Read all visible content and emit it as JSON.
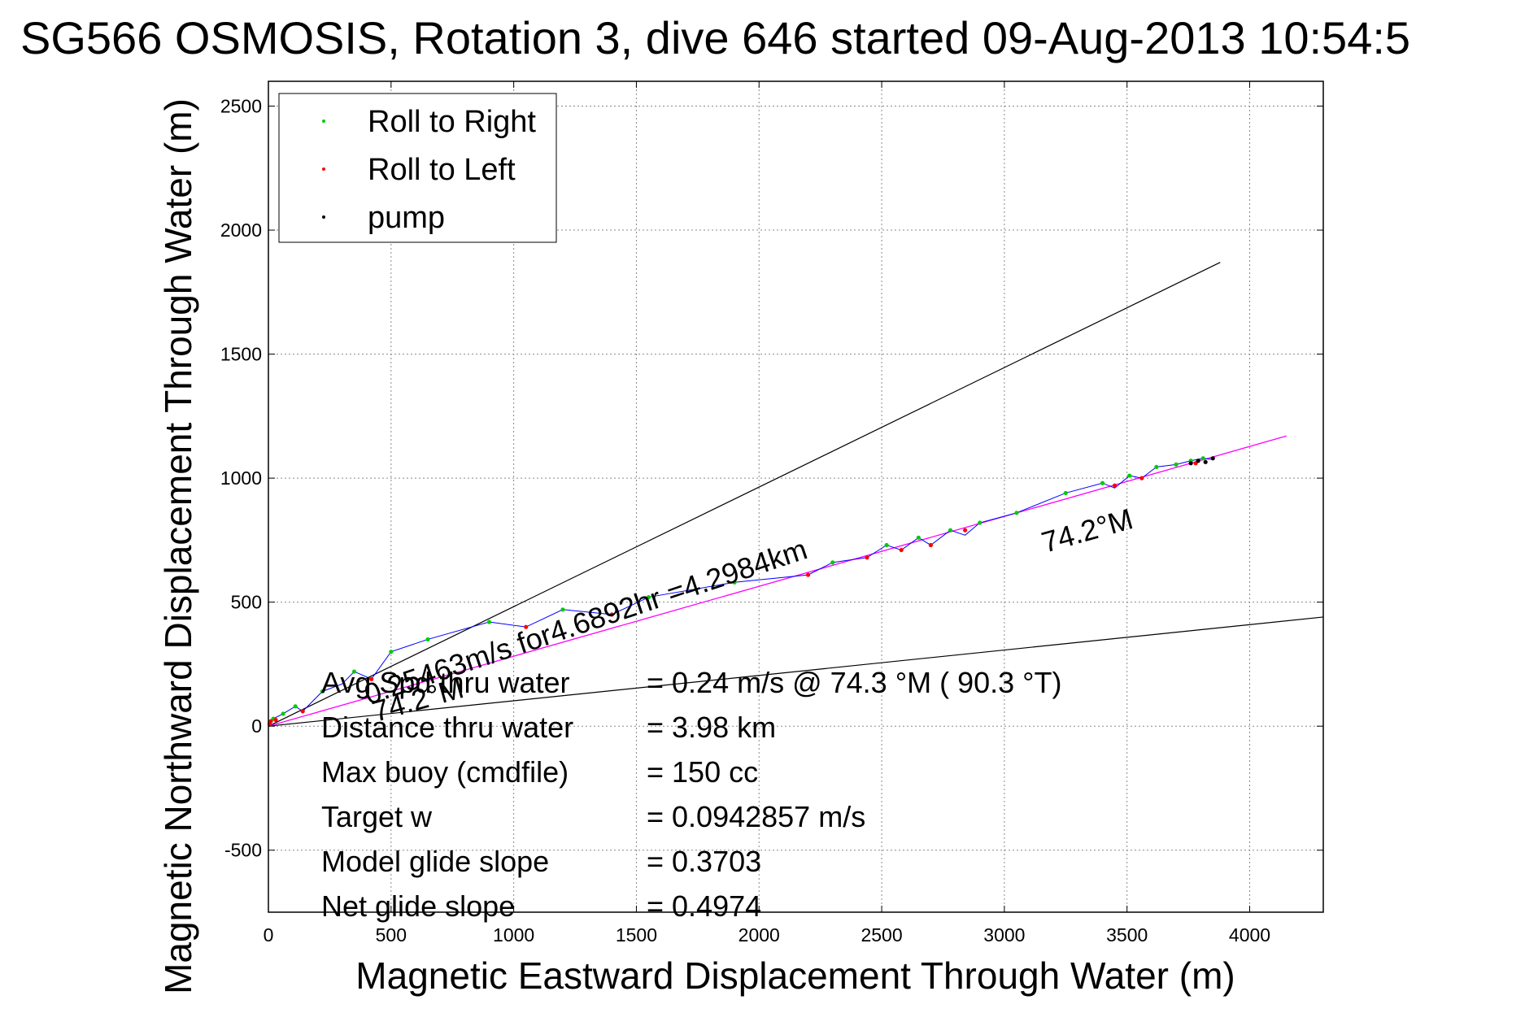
{
  "chart_data": {
    "type": "scatter",
    "title": "SG566 OSMOSIS, Rotation 3, dive 646 started 09-Aug-2013 10:54:5",
    "xlabel": "Magnetic Eastward Displacement Through Water (m)",
    "ylabel": "Magnetic Northward Displacement Through Water (m)",
    "xlim": [
      0,
      4300
    ],
    "ylim": [
      -750,
      2600
    ],
    "x_ticks": [
      0,
      500,
      1000,
      1500,
      2000,
      2500,
      3000,
      3500,
      4000
    ],
    "x_tick_labels": [
      "0",
      "500",
      "1000",
      "1500",
      "2000",
      "2500",
      "3000",
      "3500",
      "4000"
    ],
    "y_ticks": [
      -500,
      0,
      500,
      1000,
      1500,
      2000,
      2500
    ],
    "y_tick_labels": [
      "-500",
      "0",
      "500",
      "1000",
      "1500",
      "2000",
      "2500"
    ],
    "grid": true,
    "legend_position": "top-left",
    "legend": [
      {
        "label": "Roll to Right",
        "color": "#00cc00"
      },
      {
        "label": "Roll to Left",
        "color": "#ff0000"
      },
      {
        "label": "pump",
        "color": "#000000"
      }
    ],
    "track_color": "#0000ff",
    "fit_line_color": "#ff00ff",
    "series": [
      {
        "name": "Roll to Right",
        "color": "#00cc00",
        "x": [
          20,
          60,
          110,
          220,
          350,
          500,
          650,
          900,
          1200,
          1550,
          1900,
          2300,
          2520,
          2650,
          2780,
          2900,
          3050,
          3250,
          3400,
          3510,
          3620,
          3700,
          3760,
          3810
        ],
        "y": [
          30,
          50,
          80,
          140,
          220,
          300,
          350,
          420,
          470,
          520,
          580,
          660,
          730,
          760,
          790,
          820,
          860,
          940,
          980,
          1010,
          1045,
          1055,
          1070,
          1080
        ]
      },
      {
        "name": "Roll to Left",
        "color": "#ff0000",
        "x": [
          5,
          10,
          30,
          140,
          420,
          1050,
          1400,
          2200,
          2440,
          2580,
          2700,
          2840,
          3450,
          3560,
          3780
        ],
        "y": [
          10,
          20,
          25,
          60,
          190,
          400,
          450,
          610,
          680,
          710,
          730,
          790,
          970,
          1000,
          1060
        ]
      },
      {
        "name": "pump",
        "color": "#000000",
        "x": [
          3760,
          3790,
          3820,
          3850
        ],
        "y": [
          1060,
          1070,
          1065,
          1080
        ]
      }
    ],
    "track": {
      "x": [
        0,
        20,
        60,
        110,
        140,
        220,
        300,
        350,
        420,
        500,
        650,
        900,
        1050,
        1200,
        1400,
        1550,
        1900,
        2200,
        2300,
        2440,
        2520,
        2580,
        2650,
        2700,
        2780,
        2840,
        2900,
        3050,
        3250,
        3400,
        3450,
        3510,
        3560,
        3620,
        3700,
        3760,
        3810,
        3850
      ],
      "y": [
        0,
        30,
        50,
        80,
        60,
        140,
        170,
        220,
        190,
        300,
        350,
        420,
        400,
        470,
        450,
        520,
        580,
        610,
        660,
        680,
        730,
        710,
        760,
        730,
        790,
        770,
        820,
        860,
        940,
        980,
        960,
        1010,
        1000,
        1045,
        1055,
        1070,
        1080,
        1075
      ]
    },
    "fit_line": {
      "x": [
        0,
        4150
      ],
      "y": [
        0,
        1170
      ]
    },
    "reference_lines": [
      {
        "x": [
          0,
          3880
        ],
        "y": [
          0,
          1870
        ]
      },
      {
        "x": [
          0,
          4300
        ],
        "y": [
          0,
          440
        ]
      }
    ],
    "annotations": {
      "avg_speed": "0.25463m/s for4.6892hr =4.2984km",
      "heading_a": "74.2°M",
      "heading_b": "74.2°M",
      "stats": [
        {
          "label": "Avg Spd thru water",
          "value": "=  0.24 m/s @  74.3 °M ( 90.3 °T)"
        },
        {
          "label": "Distance thru water",
          "value": "=  3.98 km"
        },
        {
          "label": "Max buoy (cmdfile)",
          "value": "= 150 cc"
        },
        {
          "label": "Target w",
          "value": "= 0.0942857 m/s"
        },
        {
          "label": "Model glide slope",
          "value": "= 0.3703"
        },
        {
          "label": "Net glide slope",
          "value": "= 0.4974"
        }
      ]
    }
  }
}
